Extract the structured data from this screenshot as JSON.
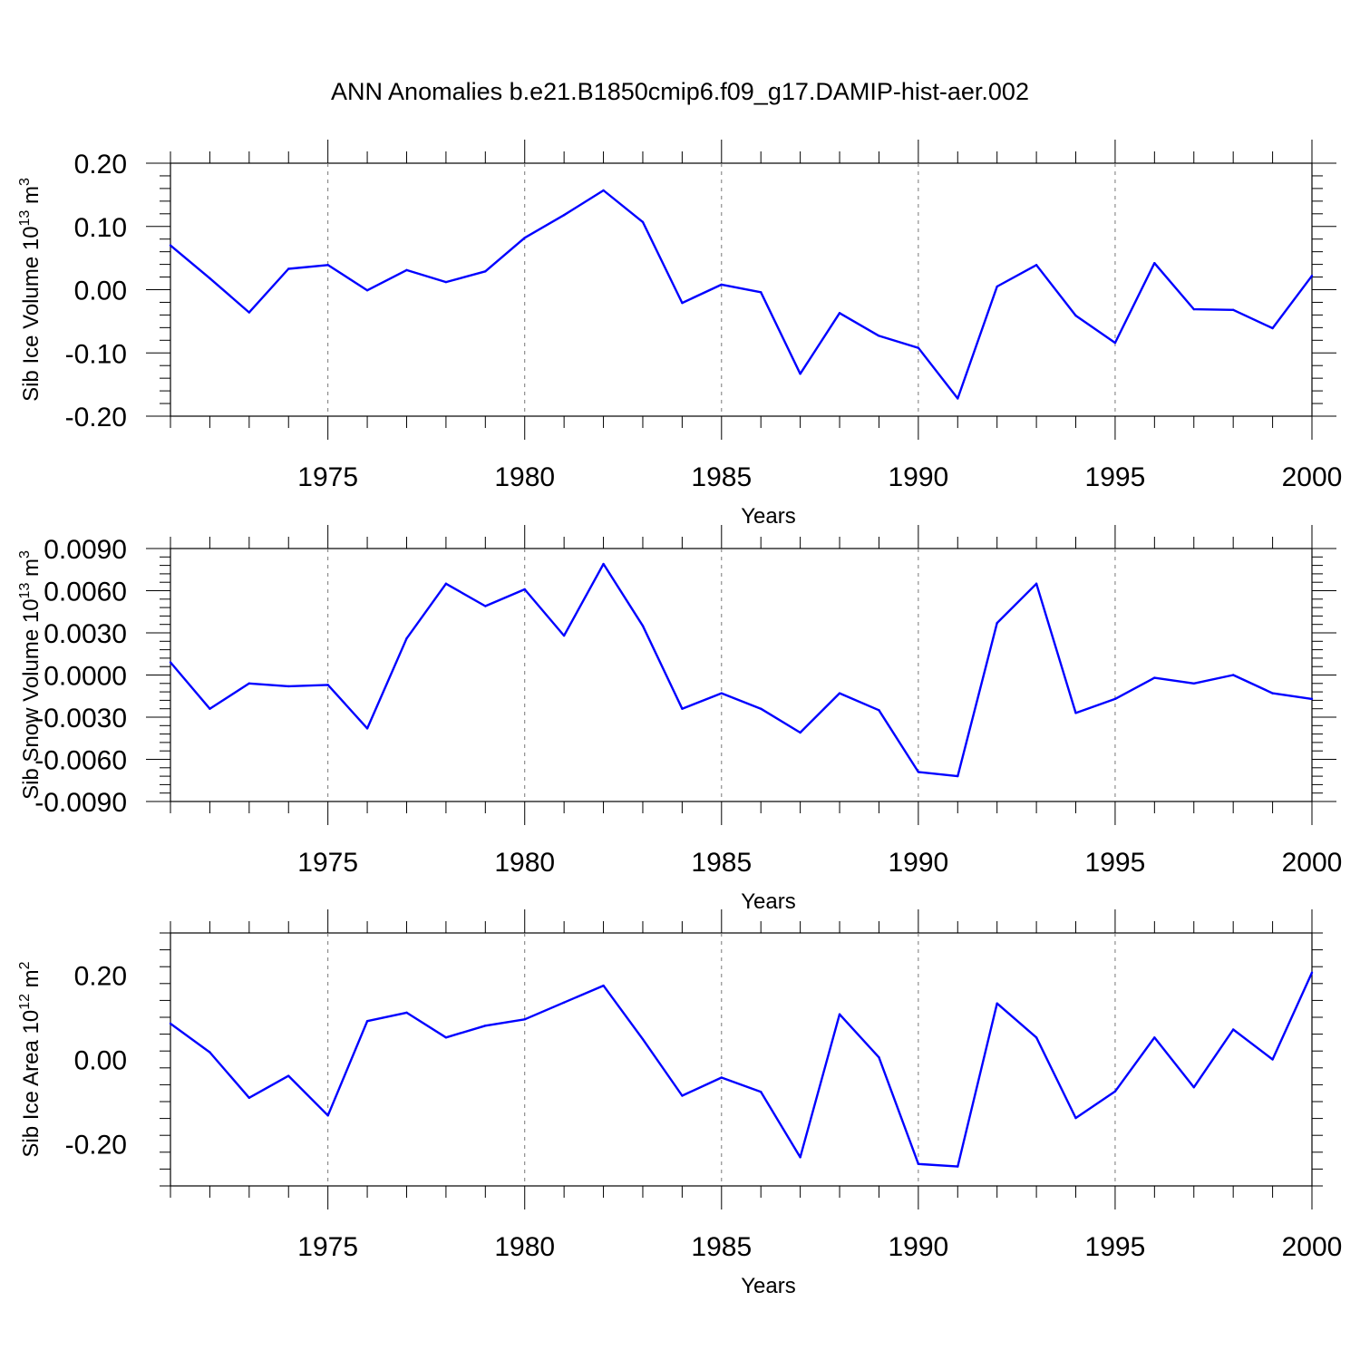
{
  "title": "ANN Anomalies b.e21.B1850cmip6.f09_g17.DAMIP-hist-aer.002",
  "colors": {
    "line": "#0000ff",
    "axis": "#000000",
    "grid": "#777777"
  },
  "chart_data": [
    {
      "type": "line",
      "ylabel": "Sib Ice Volume 10^13 m^3",
      "ylabel_parts": {
        "base": "Sib Ice Volume 10",
        "exp": "13",
        "unit": " m",
        "unit_exp": "3"
      },
      "xlabel": "Years",
      "xlim": [
        1971,
        2000
      ],
      "ylim": [
        -0.2,
        0.2
      ],
      "yticks": [
        -0.2,
        -0.1,
        0.0,
        0.1,
        0.2
      ],
      "ytick_labels": [
        "-0.20",
        "-0.10",
        "0.00",
        "0.10",
        "0.20"
      ],
      "xticks": [
        1975,
        1980,
        1985,
        1990,
        1995,
        2000
      ],
      "xtick_labels": [
        "1975",
        "1980",
        "1985",
        "1990",
        "1995",
        "2000"
      ],
      "x": [
        1971,
        1972,
        1973,
        1974,
        1975,
        1976,
        1977,
        1978,
        1979,
        1980,
        1981,
        1982,
        1983,
        1984,
        1985,
        1986,
        1987,
        1988,
        1989,
        1990,
        1991,
        1992,
        1993,
        1994,
        1995,
        1996,
        1997,
        1998,
        1999,
        2000
      ],
      "values": [
        0.07,
        0.018,
        -0.036,
        0.033,
        0.039,
        -0.001,
        0.031,
        0.012,
        0.029,
        0.082,
        0.118,
        0.157,
        0.107,
        -0.021,
        0.008,
        -0.004,
        -0.133,
        -0.037,
        -0.073,
        -0.092,
        -0.172,
        0.005,
        0.039,
        -0.041,
        -0.084,
        0.042,
        -0.031,
        -0.032,
        -0.061,
        0.022
      ]
    },
    {
      "type": "line",
      "ylabel": "Sib Snow Volume 10^13 m^3",
      "ylabel_parts": {
        "base": "Sib Snow Volume 10",
        "exp": "13",
        "unit": " m",
        "unit_exp": "3"
      },
      "xlabel": "Years",
      "xlim": [
        1971,
        2000
      ],
      "ylim": [
        -0.009,
        0.009
      ],
      "yticks": [
        -0.009,
        -0.006,
        -0.003,
        0.0,
        0.003,
        0.006,
        0.009
      ],
      "ytick_labels": [
        "-0.0090",
        "-0.0060",
        "-0.0030",
        "0.0000",
        "0.0030",
        "0.0060",
        "0.0090"
      ],
      "xticks": [
        1975,
        1980,
        1985,
        1990,
        1995,
        2000
      ],
      "xtick_labels": [
        "1975",
        "1980",
        "1985",
        "1990",
        "1995",
        "2000"
      ],
      "x": [
        1971,
        1972,
        1973,
        1974,
        1975,
        1976,
        1977,
        1978,
        1979,
        1980,
        1981,
        1982,
        1983,
        1984,
        1985,
        1986,
        1987,
        1988,
        1989,
        1990,
        1991,
        1992,
        1993,
        1994,
        1995,
        1996,
        1997,
        1998,
        1999,
        2000
      ],
      "values": [
        0.0009,
        -0.0024,
        -0.0006,
        -0.0008,
        -0.0007,
        -0.0038,
        0.0026,
        0.0065,
        0.0049,
        0.0061,
        0.0028,
        0.0079,
        0.0035,
        -0.0024,
        -0.0013,
        -0.0024,
        -0.0041,
        -0.0013,
        -0.0025,
        -0.0069,
        -0.0072,
        0.0037,
        0.0065,
        -0.0027,
        -0.0017,
        -0.0002,
        -0.0006,
        0.0,
        -0.0013,
        -0.0017
      ]
    },
    {
      "type": "line",
      "ylabel": "Sib Ice Area 10^12 m^2",
      "ylabel_parts": {
        "base": "Sib Ice Area 10",
        "exp": "12",
        "unit": " m",
        "unit_exp": "2"
      },
      "xlabel": "Years",
      "xlim": [
        1971,
        2000
      ],
      "ylim": [
        -0.3,
        0.3
      ],
      "yticks": [
        -0.2,
        0.0,
        0.2
      ],
      "ytick_labels": [
        "-0.20",
        "0.00",
        "0.20"
      ],
      "xticks": [
        1975,
        1980,
        1985,
        1990,
        1995,
        2000
      ],
      "xtick_labels": [
        "1975",
        "1980",
        "1985",
        "1990",
        "1995",
        "2000"
      ],
      "x": [
        1971,
        1972,
        1973,
        1974,
        1975,
        1976,
        1977,
        1978,
        1979,
        1980,
        1981,
        1982,
        1983,
        1984,
        1985,
        1986,
        1987,
        1988,
        1989,
        1990,
        1991,
        1992,
        1993,
        1994,
        1995,
        1996,
        1997,
        1998,
        1999,
        2000
      ],
      "values": [
        0.085,
        0.017,
        -0.091,
        -0.039,
        -0.133,
        0.091,
        0.111,
        0.052,
        0.08,
        0.095,
        0.135,
        0.175,
        0.048,
        -0.086,
        -0.043,
        -0.077,
        -0.232,
        0.107,
        0.005,
        -0.248,
        -0.254,
        0.133,
        0.052,
        -0.139,
        -0.076,
        0.052,
        -0.066,
        0.071,
        0.0,
        0.206
      ]
    }
  ]
}
